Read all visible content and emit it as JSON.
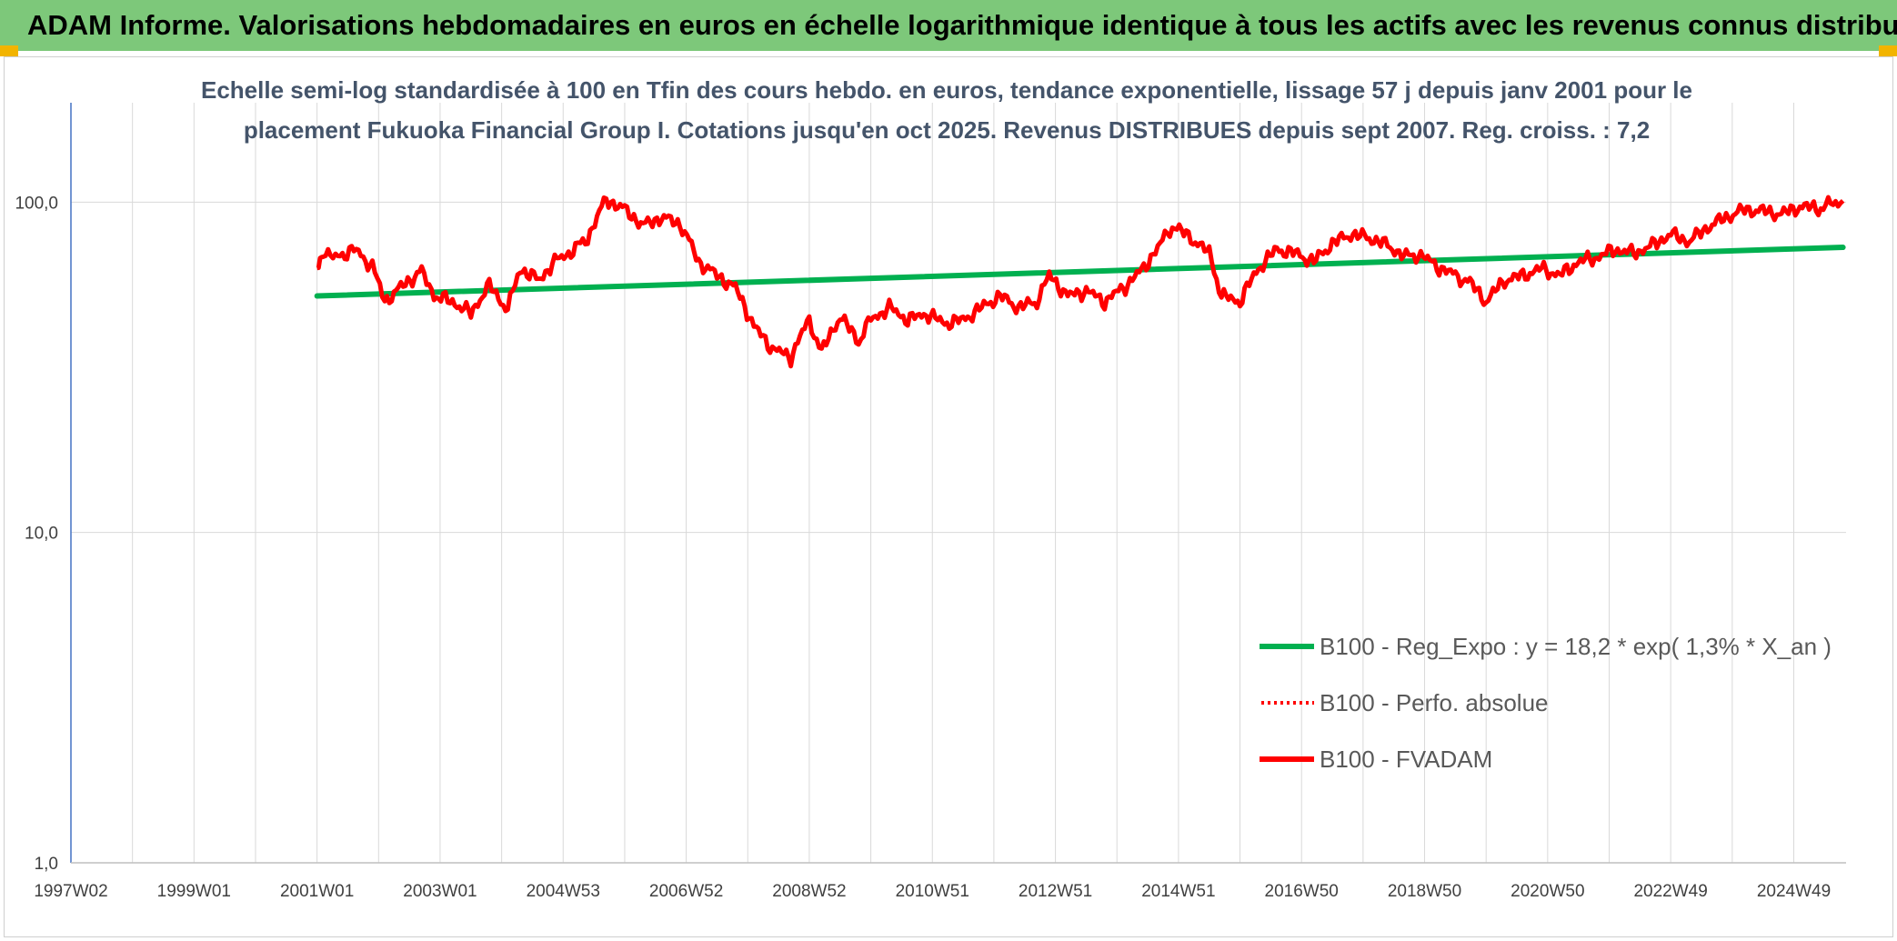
{
  "header": {
    "title": "ADAM Informe. Valorisations hebdomadaires en euros en échelle logarithmique identique à tous les actifs avec les revenus connus distribués"
  },
  "colors": {
    "banner": "#7dc87a",
    "accent_corner": "#f2b400",
    "regression": "#00b050",
    "fvadam": "#ff0000",
    "axis": "#4472c4",
    "title": "#44546a"
  },
  "chart_data": {
    "type": "line",
    "y_scale": "log",
    "title_lines": [
      "Echelle semi-log standardisée à 100 en Tfin des cours hebdo. en euros, tendance exponentielle, lissage 57 j depuis janv 2001 pour le",
      "placement Fukuoka Financial Group I. Cotations jusqu'en oct 2025. Revenus DISTRIBUES depuis sept 2007. Reg. croiss. : 7,2"
    ],
    "x_start_year": 1997.0,
    "x_end_year": 2025.85,
    "ylim": [
      1,
      200
    ],
    "y_ticks": [
      {
        "value": 1,
        "label": "1,0"
      },
      {
        "value": 10,
        "label": "10,0"
      },
      {
        "value": 100,
        "label": "100,0"
      }
    ],
    "x_ticks": [
      {
        "year": 1997.0,
        "label": "1997W02"
      },
      {
        "year": 1999.0,
        "label": "1999W01"
      },
      {
        "year": 2001.0,
        "label": "2001W01"
      },
      {
        "year": 2003.0,
        "label": "2003W01"
      },
      {
        "year": 2005.0,
        "label": "2004W53"
      },
      {
        "year": 2007.0,
        "label": "2006W52"
      },
      {
        "year": 2009.0,
        "label": "2008W52"
      },
      {
        "year": 2011.0,
        "label": "2010W51"
      },
      {
        "year": 2013.0,
        "label": "2012W51"
      },
      {
        "year": 2015.0,
        "label": "2014W51"
      },
      {
        "year": 2017.0,
        "label": "2016W50"
      },
      {
        "year": 2019.0,
        "label": "2018W50"
      },
      {
        "year": 2021.0,
        "label": "2020W50"
      },
      {
        "year": 2023.0,
        "label": "2022W49"
      },
      {
        "year": 2025.0,
        "label": "2024W49"
      }
    ],
    "legend": [
      {
        "label": "B100 - Reg_Expo : y = 18,2 * exp( 1,3% *  X_an )",
        "style": "solid",
        "color": "#00b050"
      },
      {
        "label": "B100 - Perfo. absolue",
        "style": "dotted",
        "color": "#ff0000"
      },
      {
        "label": "B100 - FVADAM",
        "style": "solid",
        "color": "#ff0000"
      }
    ],
    "series": [
      {
        "name": "B100 - Reg_Expo",
        "color": "#00b050",
        "x": [
          2001.0,
          2025.8
        ],
        "y": [
          52,
          73
        ]
      },
      {
        "name": "B100 - FVADAM",
        "color": "#ff0000",
        "x": [
          2001.0,
          2001.1,
          2001.3,
          2001.6,
          2001.9,
          2002.1,
          2002.4,
          2002.7,
          2002.9,
          2003.2,
          2003.5,
          2003.8,
          2004.1,
          2004.3,
          2004.6,
          2004.9,
          2005.2,
          2005.4,
          2005.7,
          2006.0,
          2006.3,
          2006.6,
          2006.9,
          2007.2,
          2007.5,
          2007.8,
          2008.1,
          2008.4,
          2008.7,
          2009.0,
          2009.2,
          2009.5,
          2009.8,
          2010.0,
          2010.3,
          2010.6,
          2010.9,
          2011.2,
          2011.5,
          2011.8,
          2012.1,
          2012.4,
          2012.7,
          2012.9,
          2013.2,
          2013.5,
          2013.8,
          2014.1,
          2014.4,
          2014.7,
          2014.9,
          2015.2,
          2015.5,
          2015.7,
          2016.0,
          2016.3,
          2016.6,
          2016.9,
          2017.2,
          2017.5,
          2017.8,
          2018.1,
          2018.4,
          2018.7,
          2018.9,
          2019.2,
          2019.5,
          2019.7,
          2020.0,
          2020.3,
          2020.6,
          2020.9,
          2021.2,
          2021.5,
          2021.8,
          2022.1,
          2022.4,
          2022.7,
          2023.0,
          2023.3,
          2023.6,
          2023.9,
          2024.2,
          2024.5,
          2024.8,
          2025.1,
          2025.4,
          2025.8
        ],
        "y": [
          64,
          70,
          68,
          72,
          64,
          50,
          56,
          62,
          52,
          50,
          46,
          56,
          47,
          63,
          58,
          67,
          72,
          78,
          102,
          95,
          85,
          90,
          86,
          66,
          60,
          55,
          42,
          36,
          34,
          44,
          35,
          45,
          38,
          44,
          48,
          44,
          46,
          43,
          44,
          48,
          52,
          48,
          50,
          60,
          52,
          54,
          50,
          55,
          62,
          74,
          85,
          78,
          70,
          52,
          50,
          63,
          72,
          70,
          66,
          75,
          80,
          78,
          74,
          68,
          70,
          64,
          60,
          58,
          50,
          58,
          60,
          63,
          60,
          66,
          68,
          72,
          70,
          74,
          80,
          76,
          84,
          90,
          95,
          94,
          92,
          97,
          96,
          101
        ]
      }
    ]
  }
}
